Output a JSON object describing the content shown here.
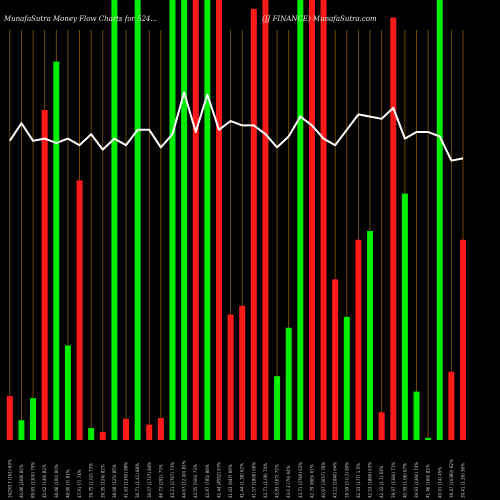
{
  "chart_data": {
    "type": "bar",
    "title_left": "MunafaSutra  Money Flow  Charts for 524...",
    "title_right": "(JJ FINANCE) MunafaSutra.com",
    "colors": {
      "background": "#000000",
      "gridline": "#8a5a00",
      "up": "#00ee00",
      "down": "#ff1a1a",
      "line": "#ffffff",
      "text": "#e8e8e8"
    },
    "ylim": [
      0,
      100
    ],
    "bars": [
      {
        "value": 10,
        "color": "red"
      },
      {
        "value": 4.5,
        "color": "green"
      },
      {
        "value": 9.5,
        "color": "green"
      },
      {
        "value": 75,
        "color": "red"
      },
      {
        "value": 86,
        "color": "green"
      },
      {
        "value": 21.5,
        "color": "green"
      },
      {
        "value": 59,
        "color": "red"
      },
      {
        "value": 2.7,
        "color": "green"
      },
      {
        "value": 1.8,
        "color": "red"
      },
      {
        "value": 100,
        "color": "green"
      },
      {
        "value": 4.8,
        "color": "red"
      },
      {
        "value": 100,
        "color": "green"
      },
      {
        "value": 3.5,
        "color": "red"
      },
      {
        "value": 5.0,
        "color": "red"
      },
      {
        "value": 100,
        "color": "green"
      },
      {
        "value": 100,
        "color": "green"
      },
      {
        "value": 100,
        "color": "red"
      },
      {
        "value": 100,
        "color": "green"
      },
      {
        "value": 100,
        "color": "red"
      },
      {
        "value": 28.5,
        "color": "red"
      },
      {
        "value": 30.5,
        "color": "red"
      },
      {
        "value": 98,
        "color": "red"
      },
      {
        "value": 100,
        "color": "red"
      },
      {
        "value": 14.5,
        "color": "green"
      },
      {
        "value": 25.5,
        "color": "green"
      },
      {
        "value": 100,
        "color": "green"
      },
      {
        "value": 100,
        "color": "red"
      },
      {
        "value": 100,
        "color": "red"
      },
      {
        "value": 36.5,
        "color": "red"
      },
      {
        "value": 28.0,
        "color": "green"
      },
      {
        "value": 45.5,
        "color": "red"
      },
      {
        "value": 47.5,
        "color": "green"
      },
      {
        "value": 6.3,
        "color": "red"
      },
      {
        "value": 96,
        "color": "red"
      },
      {
        "value": 56,
        "color": "green"
      },
      {
        "value": 11.0,
        "color": "green"
      },
      {
        "value": 0.5,
        "color": "green"
      },
      {
        "value": 100,
        "color": "green"
      },
      {
        "value": 15.5,
        "color": "red"
      },
      {
        "value": 45.5,
        "color": "red"
      }
    ],
    "line": [
      68,
      72,
      68,
      68.5,
      67.5,
      68.5,
      67,
      69.5,
      66,
      68.5,
      67,
      70.5,
      70.5,
      66.5,
      69.5,
      79,
      70,
      78.5,
      70.5,
      72.5,
      71.5,
      71.5,
      69.5,
      66.5,
      69,
      73.5,
      71.5,
      68.5,
      67,
      70.5,
      74,
      73.5,
      73,
      75.5,
      68.5,
      70,
      70,
      69,
      63.5,
      64
    ],
    "tick_labels": [
      "16/2017 (161) 60%",
      "40.96 (168) 82%",
      "89.65 (1300) 79%",
      "45.62 (149) 82%",
      "38.66 (100) 60%",
      "48.90 (7) 81%",
      "47.91 (7) 74%",
      "39.75 (1.02) 73%",
      "39.35 (124) 82%",
      "38.68 (125) 85%",
      "41.63 (1345) 88%",
      "36.71 (1.41) 88%",
      "36.07 (1737) 84%",
      "46.73 (291) 73%",
      "43.21 (2767) 73%",
      "44.67 (12.00) 81%",
      "43.55 (500) 73%",
      "42.97 (785) 88%",
      "42.44 (4552) 67%",
      "41.63 (947) 66%",
      "41.44 (1.38) 62%",
      "41.57 (1806) 66%",
      "43.71 (1.08) 74%",
      "43.83 (167) 72%",
      "43.6  2 (79) 64%",
      "43.71 (3760) 63%",
      "42.79 (865) 61%",
      "40.97 (3057) 76%",
      "43.12 (1840) 64%",
      "39.59 (3 0.2) 84%",
      "42.33 (177) 1.5%",
      "42.53 (1860) 63%",
      "42.32 (1.1) 63%",
      "39.97 (1360) 71%",
      "40.59 (1.06) 67%",
      "39.93 (1360) 74%",
      "41.46 (169) 82%",
      "40.91 (14) 45%",
      "39.47 (10380) 62%",
      "39.41 (1.26) 36%"
    ]
  }
}
